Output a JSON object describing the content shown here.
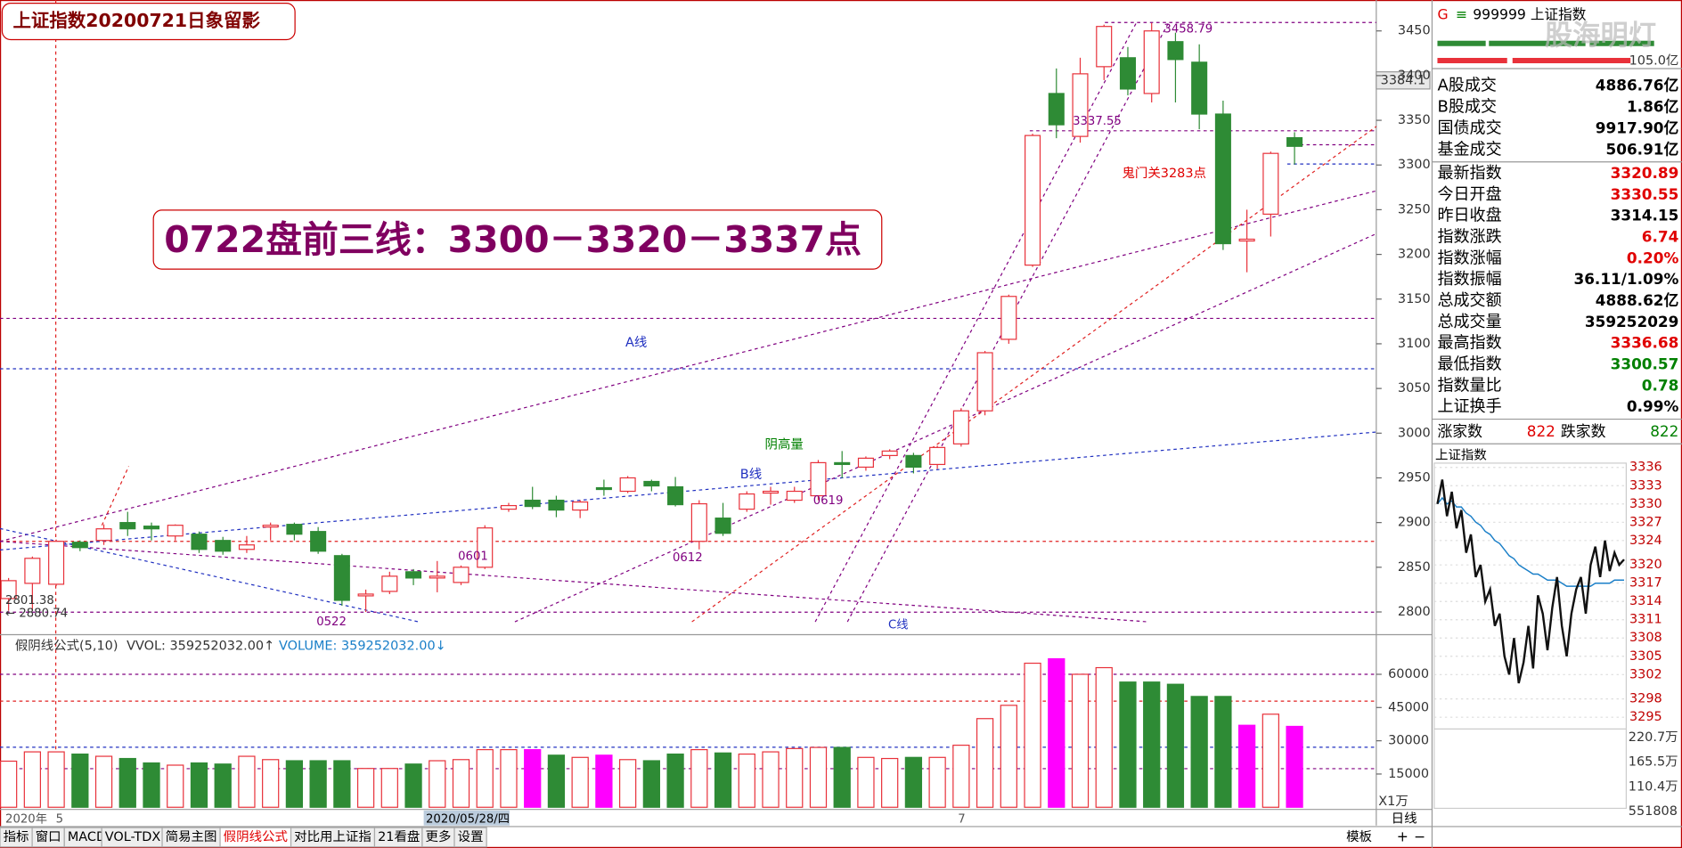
{
  "header": {
    "title": "上证指数20200721日象留影",
    "annotation": "0722盘前三线：3300－3320－3337点"
  },
  "main": {
    "ylim": [
      2777,
      3463
    ],
    "yticks": [
      3450,
      3400,
      3350,
      3300,
      3250,
      3200,
      3150,
      3100,
      3050,
      3000,
      2950,
      2900,
      2850,
      2800
    ],
    "cursor_label": "3384.1",
    "annotations": [
      "3458.79",
      "3337.55",
      "鬼门关3283点",
      "A线",
      "B线",
      "阴高量",
      "0601",
      "0612",
      "0619",
      "0522",
      "2801.38",
      "← 2880.74",
      "C线"
    ],
    "up_color": "#e8313a",
    "down_color": "#2e8b35"
  },
  "days": [
    {
      "o": 2815,
      "h": 2838,
      "l": 2801.38,
      "c": 2835,
      "v": 20800,
      "vc": "#e8313a"
    },
    {
      "o": 2832,
      "h": 2862,
      "l": 2801,
      "c": 2860,
      "v": 25000,
      "vc": "#e8313a"
    },
    {
      "o": 2831,
      "h": 2881,
      "l": 2829,
      "c": 2879,
      "v": 25000,
      "vc": "#e8313a"
    },
    {
      "o": 2878,
      "h": 2880,
      "l": 2868,
      "c": 2872,
      "v": 24000,
      "vc": "#2e8b35"
    },
    {
      "o": 2880,
      "h": 2898,
      "l": 2875,
      "c": 2893,
      "v": 23000,
      "vc": "#e8313a"
    },
    {
      "o": 2900,
      "h": 2912,
      "l": 2885,
      "c": 2893,
      "v": 22000,
      "vc": "#2e8b35"
    },
    {
      "o": 2896,
      "h": 2900,
      "l": 2880,
      "c": 2893,
      "v": 20000,
      "vc": "#2e8b35"
    },
    {
      "o": 2885,
      "h": 2898,
      "l": 2880,
      "c": 2897,
      "v": 19000,
      "vc": "#e8313a"
    },
    {
      "o": 2887,
      "h": 2890,
      "l": 2866,
      "c": 2870,
      "v": 20000,
      "vc": "#2e8b35"
    },
    {
      "o": 2880,
      "h": 2884,
      "l": 2864,
      "c": 2868,
      "v": 19500,
      "vc": "#2e8b35"
    },
    {
      "o": 2870,
      "h": 2885,
      "l": 2866,
      "c": 2875,
      "v": 23000,
      "vc": "#e8313a"
    },
    {
      "o": 2895,
      "h": 2900,
      "l": 2880,
      "c": 2897,
      "v": 21500,
      "vc": "#e8313a"
    },
    {
      "o": 2898,
      "h": 2900,
      "l": 2880,
      "c": 2887,
      "v": 21000,
      "vc": "#2e8b35"
    },
    {
      "o": 2890,
      "h": 2895,
      "l": 2865,
      "c": 2868,
      "v": 21000,
      "vc": "#2e8b35"
    },
    {
      "o": 2863,
      "h": 2865,
      "l": 2807,
      "c": 2813,
      "v": 21000,
      "vc": "#2e8b35"
    },
    {
      "o": 2818,
      "h": 2825,
      "l": 2800,
      "c": 2820,
      "v": 17500,
      "vc": "#e8313a"
    },
    {
      "o": 2823,
      "h": 2845,
      "l": 2820,
      "c": 2840,
      "v": 17500,
      "vc": "#e8313a"
    },
    {
      "o": 2845,
      "h": 2848,
      "l": 2830,
      "c": 2838,
      "v": 19500,
      "vc": "#2e8b35"
    },
    {
      "o": 2838,
      "h": 2857,
      "l": 2822,
      "c": 2840,
      "v": 21000,
      "vc": "#e8313a"
    },
    {
      "o": 2833,
      "h": 2852,
      "l": 2830,
      "c": 2850,
      "v": 21500,
      "vc": "#e8313a"
    },
    {
      "o": 2850,
      "h": 2897,
      "l": 2848,
      "c": 2894,
      "v": 26000,
      "vc": "#e8313a"
    },
    {
      "o": 2915,
      "h": 2922,
      "l": 2912,
      "c": 2919,
      "v": 26000,
      "vc": "#e8313a"
    },
    {
      "o": 2925,
      "h": 2940,
      "l": 2915,
      "c": 2918,
      "v": 26000,
      "vc": "#ff00ff"
    },
    {
      "o": 2925,
      "h": 2930,
      "l": 2906,
      "c": 2914,
      "v": 23500,
      "vc": "#2e8b35"
    },
    {
      "o": 2914,
      "h": 2925,
      "l": 2905,
      "c": 2923,
      "v": 22500,
      "vc": "#e8313a"
    },
    {
      "o": 2939,
      "h": 2948,
      "l": 2930,
      "c": 2937,
      "v": 23500,
      "vc": "#ff00ff"
    },
    {
      "o": 2935,
      "h": 2952,
      "l": 2933,
      "c": 2950,
      "v": 21500,
      "vc": "#e8313a"
    },
    {
      "o": 2946,
      "h": 2948,
      "l": 2935,
      "c": 2941,
      "v": 21000,
      "vc": "#2e8b35"
    },
    {
      "o": 2940,
      "h": 2951,
      "l": 2918,
      "c": 2920,
      "v": 24000,
      "vc": "#2e8b35"
    },
    {
      "o": 2879,
      "h": 2925,
      "l": 2870,
      "c": 2921,
      "v": 26000,
      "vc": "#e8313a"
    },
    {
      "o": 2905,
      "h": 2922,
      "l": 2885,
      "c": 2888,
      "v": 24500,
      "vc": "#2e8b35"
    },
    {
      "o": 2915,
      "h": 2935,
      "l": 2912,
      "c": 2932,
      "v": 24000,
      "vc": "#e8313a"
    },
    {
      "o": 2933,
      "h": 2940,
      "l": 2920,
      "c": 2935,
      "v": 25000,
      "vc": "#e8313a"
    },
    {
      "o": 2925,
      "h": 2940,
      "l": 2922,
      "c": 2935,
      "v": 26500,
      "vc": "#e8313a"
    },
    {
      "o": 2930,
      "h": 2970,
      "l": 2925,
      "c": 2967,
      "v": 27000,
      "vc": "#e8313a"
    },
    {
      "o": 2967,
      "h": 2980,
      "l": 2950,
      "c": 2965,
      "v": 27000,
      "vc": "#2e8b35"
    },
    {
      "o": 2962,
      "h": 2974,
      "l": 2958,
      "c": 2972,
      "v": 22500,
      "vc": "#e8313a"
    },
    {
      "o": 2975,
      "h": 2982,
      "l": 2971,
      "c": 2980,
      "v": 22000,
      "vc": "#e8313a"
    },
    {
      "o": 2975,
      "h": 2978,
      "l": 2955,
      "c": 2962,
      "v": 22500,
      "vc": "#2e8b35"
    },
    {
      "o": 2965,
      "h": 2986,
      "l": 2960,
      "c": 2984,
      "v": 22500,
      "vc": "#e8313a"
    },
    {
      "o": 2988,
      "h": 3028,
      "l": 2985,
      "c": 3025,
      "v": 28000,
      "vc": "#e8313a"
    },
    {
      "o": 3025,
      "h": 3092,
      "l": 3020,
      "c": 3090,
      "v": 40000,
      "vc": "#e8313a"
    },
    {
      "o": 3105,
      "h": 3155,
      "l": 3100,
      "c": 3153,
      "v": 46000,
      "vc": "#e8313a"
    },
    {
      "o": 3188,
      "h": 3335,
      "l": 3186,
      "c": 3333,
      "v": 65000,
      "vc": "#e8313a"
    },
    {
      "o": 3380,
      "h": 3408,
      "l": 3330,
      "c": 3345,
      "v": 67000,
      "vc": "#ff00ff"
    },
    {
      "o": 3332,
      "h": 3420,
      "l": 3325,
      "c": 3402,
      "v": 60000,
      "vc": "#e8313a"
    },
    {
      "o": 3410,
      "h": 3457,
      "l": 3395,
      "c": 3455,
      "v": 63000,
      "vc": "#e8313a"
    },
    {
      "o": 3420,
      "h": 3432,
      "l": 3378,
      "c": 3385,
      "v": 56500,
      "vc": "#2e8b35"
    },
    {
      "o": 3380,
      "h": 3458.79,
      "l": 3370,
      "c": 3450,
      "v": 56500,
      "vc": "#2e8b35"
    },
    {
      "o": 3438,
      "h": 3448,
      "l": 3370,
      "c": 3418,
      "v": 55500,
      "vc": "#2e8b35"
    },
    {
      "o": 3415,
      "h": 3435,
      "l": 3340,
      "c": 3357,
      "v": 50000,
      "vc": "#2e8b35"
    },
    {
      "o": 3357,
      "h": 3372,
      "l": 3205,
      "c": 3212,
      "v": 50000,
      "vc": "#2e8b35"
    },
    {
      "o": 3215,
      "h": 3250,
      "l": 3180,
      "c": 3217,
      "v": 37000,
      "vc": "#ff00ff"
    },
    {
      "o": 3245,
      "h": 3315,
      "l": 3220,
      "c": 3313,
      "v": 42000,
      "vc": "#e8313a"
    },
    {
      "o": 3330.55,
      "h": 3336.68,
      "l": 3300.57,
      "c": 3320.89,
      "v": 36500,
      "vc": "#ff00ff"
    }
  ],
  "volume": {
    "formula": "假阴线公式(5,10)",
    "vvol": "VVOL: 359252032.00↑",
    "volume": "VOLUME: 359252032.00↓",
    "ylim": [
      0,
      70000
    ],
    "yticks": [
      60000,
      45000,
      30000,
      15000
    ],
    "unit": "X1万"
  },
  "x_labels": [
    "2020年",
    "5",
    "2020/05/28/四",
    "7"
  ],
  "tabs": {
    "items": [
      "指标",
      "窗口",
      "MACD",
      "VOL-TDX",
      "简易主图",
      "假阴线公式",
      "对比用上证指",
      "21看盘",
      "更多",
      "设置"
    ],
    "active": 5,
    "template": "模板",
    "period": "日线",
    "zoom": [
      "+",
      "−"
    ]
  },
  "panel": {
    "flag": "G",
    "menu": "≡",
    "name": "999999 上证指数",
    "bar_label": "105.0亿",
    "watermark": "股海明灯",
    "rows": [
      {
        "label": "A股成交",
        "value": "4886.76亿",
        "color": "#000000"
      },
      {
        "label": "B股成交",
        "value": "1.86亿",
        "color": "#000000"
      },
      {
        "label": "国债成交",
        "value": "9917.90亿",
        "color": "#000000"
      },
      {
        "label": "基金成交",
        "value": "506.91亿",
        "color": "#000000"
      },
      {
        "label": "最新指数",
        "value": "3320.89",
        "color": "#e00000"
      },
      {
        "label": "今日开盘",
        "value": "3330.55",
        "color": "#e00000"
      },
      {
        "label": "昨日收盘",
        "value": "3314.15",
        "color": "#000000"
      },
      {
        "label": "指数涨跌",
        "value": "6.74",
        "color": "#e00000"
      },
      {
        "label": "指数涨幅",
        "value": "0.20%",
        "color": "#e00000"
      },
      {
        "label": "指数振幅",
        "value": "36.11/1.09%",
        "color": "#000000"
      },
      {
        "label": "总成交额",
        "value": "4888.62亿",
        "color": "#000000"
      },
      {
        "label": "总成交量",
        "value": "359252029",
        "color": "#000000"
      },
      {
        "label": "最高指数",
        "value": "3336.68",
        "color": "#e00000"
      },
      {
        "label": "最低指数",
        "value": "3300.57",
        "color": "#008000"
      },
      {
        "label": "指数量比",
        "value": "0.78",
        "color": "#008000"
      },
      {
        "label": "上证换手",
        "value": "0.99%",
        "color": "#000000"
      }
    ],
    "breadth": {
      "up_label": "涨家数",
      "up": 822,
      "down_label": "跌家数",
      "down": 822
    }
  },
  "intraday": {
    "title": "上证指数",
    "ylim": [
      3295,
      3336
    ],
    "yticks": [
      3336,
      3333,
      3330,
      3327,
      3324,
      3320,
      3317,
      3314,
      3311,
      3308,
      3305,
      3302,
      3298,
      3295
    ],
    "prices": [
      3330,
      3334,
      3328,
      3332,
      3326,
      3329,
      3322,
      3325,
      3318,
      3320,
      3314,
      3316,
      3310,
      3312,
      3305,
      3302,
      3308,
      3300.57,
      3304,
      3310,
      3303,
      3315,
      3312,
      3306,
      3313,
      3318,
      3310,
      3305,
      3312,
      3316,
      3318,
      3312,
      3320,
      3323,
      3318,
      3324,
      3319,
      3322,
      3320,
      3320.89
    ],
    "avg": [
      3330,
      3331,
      3330,
      3330.5,
      3329.5,
      3329.5,
      3328.5,
      3328,
      3327,
      3326.5,
      3325.5,
      3325,
      3324,
      3323.5,
      3322.5,
      3321.5,
      3321,
      3320,
      3319.5,
      3319,
      3318.5,
      3318.5,
      3318,
      3317.5,
      3317.5,
      3317.5,
      3317,
      3316.5,
      3316.5,
      3316.5,
      3316.5,
      3316.5,
      3316.5,
      3317,
      3317,
      3317,
      3317,
      3317.5,
      3317.5,
      3317.5
    ],
    "price_color": "#111111",
    "avg_color": "#1a7fc8",
    "vol_labels": [
      "220.7万",
      "165.5万",
      "110.4万",
      "551808"
    ]
  }
}
